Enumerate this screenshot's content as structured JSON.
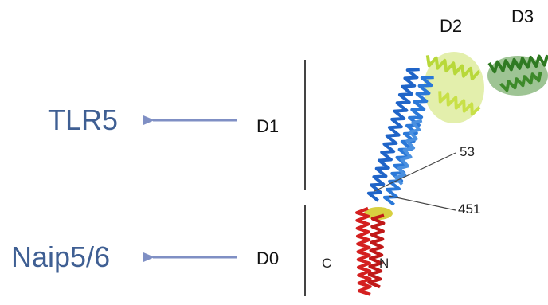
{
  "left_labels": [
    {
      "receptor": "TLR5",
      "domain": "D1"
    },
    {
      "receptor": "Naip5/6",
      "domain": "D0"
    }
  ],
  "domain_labels": [
    "D2",
    "D3"
  ],
  "residues": [
    "53",
    "451"
  ],
  "termini": [
    "C",
    "N"
  ]
}
